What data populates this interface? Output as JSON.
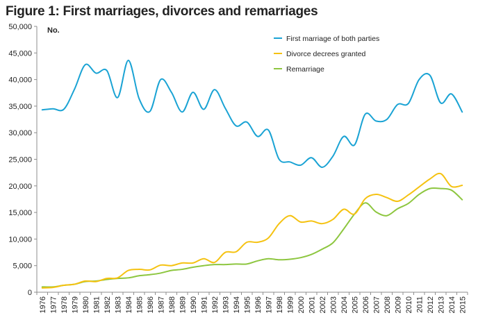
{
  "chart_data": {
    "type": "line",
    "title": "Figure 1: First marriages, divorces and remarriages",
    "ylabel": "No.",
    "ylim": [
      0,
      50000
    ],
    "yticks": [
      0,
      5000,
      10000,
      15000,
      20000,
      25000,
      30000,
      35000,
      40000,
      45000,
      50000
    ],
    "ytick_labels": [
      "0",
      "5,000",
      "10,000",
      "15,000",
      "20,000",
      "25,000",
      "30,000",
      "35,000",
      "40,000",
      "45,000",
      "50,000"
    ],
    "x": [
      "1976",
      "1977",
      "1978",
      "1979",
      "1980",
      "1981",
      "1982",
      "1983",
      "1984",
      "1985",
      "1986",
      "1987",
      "1988",
      "1989",
      "1990",
      "1991",
      "1992",
      "1993",
      "1994",
      "1995",
      "1996",
      "1997",
      "1998",
      "1999",
      "2000",
      "2001",
      "2002",
      "2003",
      "2004",
      "2005",
      "2006",
      "2007",
      "2008",
      "2009",
      "2010",
      "2011",
      "2012",
      "2013",
      "2014",
      "2015"
    ],
    "grid": false,
    "legend_position": "top-right",
    "series": [
      {
        "name": "First marriage of both parties",
        "color": "#1aa3d4",
        "values": [
          34300,
          34500,
          34400,
          38200,
          42800,
          41200,
          41700,
          36600,
          43600,
          36400,
          34000,
          40000,
          37600,
          33900,
          37600,
          34400,
          38100,
          34600,
          31300,
          32000,
          29300,
          30500,
          25000,
          24500,
          23900,
          25300,
          23500,
          25600,
          29300,
          27700,
          33500,
          32200,
          32500,
          35300,
          35500,
          40000,
          40800,
          35600,
          37300,
          33900
        ]
      },
      {
        "name": "Divorce decrees granted",
        "color": "#f5c211",
        "values": [
          800,
          900,
          1300,
          1500,
          2100,
          2000,
          2600,
          2700,
          4100,
          4300,
          4200,
          5100,
          5000,
          5500,
          5500,
          6300,
          5600,
          7500,
          7600,
          9400,
          9400,
          10200,
          12900,
          14400,
          13200,
          13400,
          12900,
          13700,
          15600,
          14700,
          17600,
          18400,
          17800,
          17100,
          18300,
          19800,
          21300,
          22300,
          19900,
          20100
        ]
      },
      {
        "name": "Remarriage",
        "color": "#8dc63f",
        "values": [
          1000,
          1000,
          1300,
          1500,
          2000,
          2100,
          2400,
          2600,
          2700,
          3100,
          3300,
          3600,
          4100,
          4300,
          4700,
          5000,
          5200,
          5200,
          5300,
          5300,
          5900,
          6300,
          6100,
          6200,
          6500,
          7100,
          8100,
          9300,
          11900,
          14700,
          16800,
          15100,
          14400,
          15700,
          16700,
          18400,
          19500,
          19500,
          19200,
          17400
        ]
      }
    ]
  }
}
